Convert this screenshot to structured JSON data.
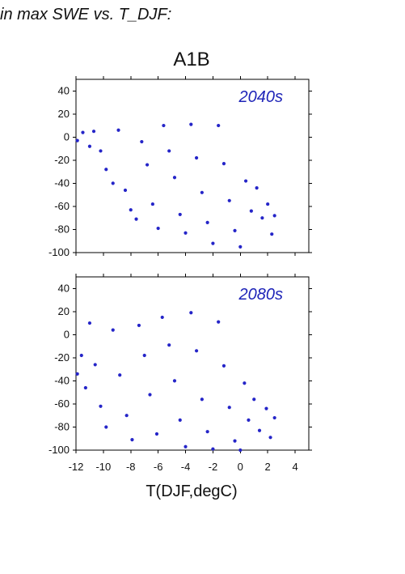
{
  "header": {
    "title": "in max SWE vs. T_DJF:"
  },
  "colors": {
    "points": "#2525c8",
    "panel_label": "#1e24b8"
  },
  "chart_data": [
    {
      "type": "scatter",
      "title": "A1B",
      "panel_label": "2040s",
      "xlabel": "",
      "ylabel": "",
      "xlim": [
        -12,
        5
      ],
      "ylim": [
        -100,
        50
      ],
      "x_ticks": [
        -12,
        -10,
        -8,
        -6,
        -4,
        -2,
        0,
        2,
        4
      ],
      "y_ticks": [
        40,
        20,
        0,
        -20,
        -40,
        -60,
        -80,
        -100
      ],
      "grid": false,
      "series": [
        {
          "values": [
            {
              "x": -11.9,
              "y": -3
            },
            {
              "x": -11.5,
              "y": 4
            },
            {
              "x": -11.0,
              "y": -8
            },
            {
              "x": -10.7,
              "y": 5
            },
            {
              "x": -10.2,
              "y": -12
            },
            {
              "x": -9.8,
              "y": -28
            },
            {
              "x": -9.3,
              "y": -40
            },
            {
              "x": -8.9,
              "y": 6
            },
            {
              "x": -8.4,
              "y": -46
            },
            {
              "x": -8.0,
              "y": -63
            },
            {
              "x": -7.6,
              "y": -71
            },
            {
              "x": -7.2,
              "y": -4
            },
            {
              "x": -6.8,
              "y": -24
            },
            {
              "x": -6.4,
              "y": -58
            },
            {
              "x": -6.0,
              "y": -79
            },
            {
              "x": -5.6,
              "y": 10
            },
            {
              "x": -5.2,
              "y": -12
            },
            {
              "x": -4.8,
              "y": -35
            },
            {
              "x": -4.4,
              "y": -67
            },
            {
              "x": -4.0,
              "y": -83
            },
            {
              "x": -3.6,
              "y": 11
            },
            {
              "x": -3.2,
              "y": -18
            },
            {
              "x": -2.8,
              "y": -48
            },
            {
              "x": -2.4,
              "y": -74
            },
            {
              "x": -2.0,
              "y": -92
            },
            {
              "x": -1.6,
              "y": 10
            },
            {
              "x": -1.2,
              "y": -23
            },
            {
              "x": -0.8,
              "y": -55
            },
            {
              "x": -0.4,
              "y": -81
            },
            {
              "x": 0.0,
              "y": -95
            },
            {
              "x": 0.4,
              "y": -38
            },
            {
              "x": 0.8,
              "y": -64
            },
            {
              "x": 1.2,
              "y": -44
            },
            {
              "x": 1.6,
              "y": -70
            },
            {
              "x": 2.0,
              "y": -58
            },
            {
              "x": 2.3,
              "y": -84
            },
            {
              "x": 2.5,
              "y": -68
            }
          ]
        }
      ]
    },
    {
      "type": "scatter",
      "title": "",
      "panel_label": "2080s",
      "xlabel": "T(DJF,degC)",
      "ylabel": "",
      "xlim": [
        -12,
        5
      ],
      "ylim": [
        -100,
        50
      ],
      "x_ticks": [
        -12,
        -10,
        -8,
        -6,
        -4,
        -2,
        0,
        2,
        4
      ],
      "y_ticks": [
        40,
        20,
        0,
        -20,
        -40,
        -60,
        -80,
        -100
      ],
      "grid": false,
      "series": [
        {
          "values": [
            {
              "x": -11.9,
              "y": -34
            },
            {
              "x": -11.6,
              "y": -18
            },
            {
              "x": -11.3,
              "y": -46
            },
            {
              "x": -11.0,
              "y": 10
            },
            {
              "x": -10.6,
              "y": -26
            },
            {
              "x": -10.2,
              "y": -62
            },
            {
              "x": -9.8,
              "y": -80
            },
            {
              "x": -9.3,
              "y": 4
            },
            {
              "x": -8.8,
              "y": -35
            },
            {
              "x": -8.3,
              "y": -70
            },
            {
              "x": -7.9,
              "y": -91
            },
            {
              "x": -7.4,
              "y": 8
            },
            {
              "x": -7.0,
              "y": -18
            },
            {
              "x": -6.6,
              "y": -52
            },
            {
              "x": -6.1,
              "y": -86
            },
            {
              "x": -5.7,
              "y": 15
            },
            {
              "x": -5.2,
              "y": -9
            },
            {
              "x": -4.8,
              "y": -40
            },
            {
              "x": -4.4,
              "y": -74
            },
            {
              "x": -4.0,
              "y": -97
            },
            {
              "x": -3.6,
              "y": 19
            },
            {
              "x": -3.2,
              "y": -14
            },
            {
              "x": -2.8,
              "y": -56
            },
            {
              "x": -2.4,
              "y": -84
            },
            {
              "x": -2.0,
              "y": -99
            },
            {
              "x": -1.6,
              "y": 11
            },
            {
              "x": -1.2,
              "y": -27
            },
            {
              "x": -0.8,
              "y": -63
            },
            {
              "x": -0.4,
              "y": -92
            },
            {
              "x": 0.0,
              "y": -100
            },
            {
              "x": 0.3,
              "y": -42
            },
            {
              "x": 0.6,
              "y": -74
            },
            {
              "x": 1.0,
              "y": -56
            },
            {
              "x": 1.4,
              "y": -83
            },
            {
              "x": 1.9,
              "y": -64
            },
            {
              "x": 2.2,
              "y": -89
            },
            {
              "x": 2.5,
              "y": -72
            }
          ]
        }
      ]
    }
  ]
}
